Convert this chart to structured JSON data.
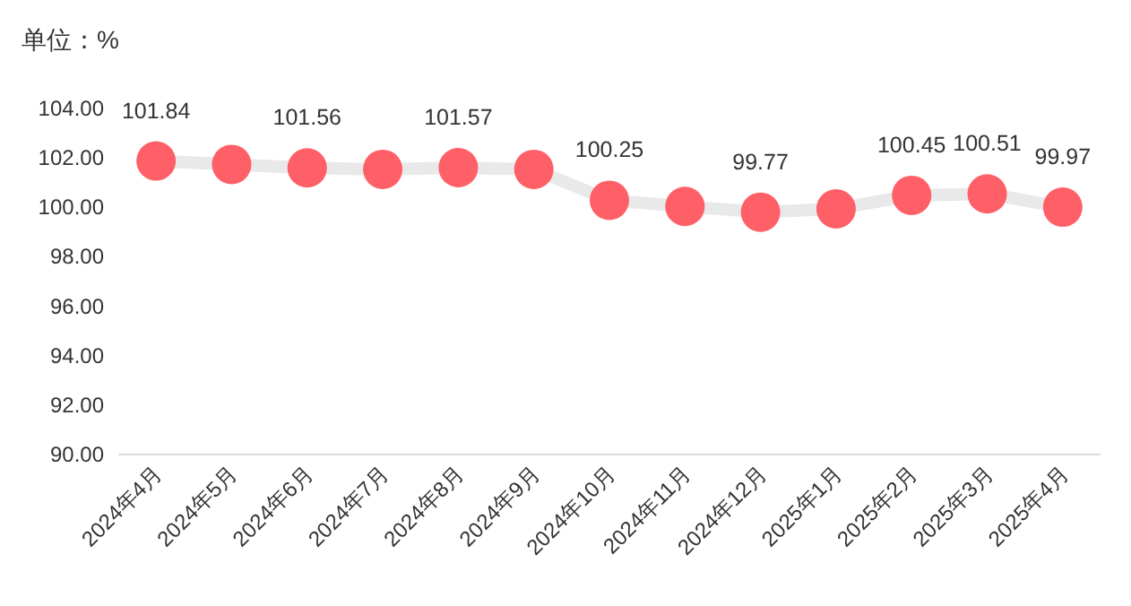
{
  "chart_data": {
    "type": "line",
    "ylabel": "单位：%",
    "categories": [
      "2024年4月",
      "2024年5月",
      "2024年6月",
      "2024年7月",
      "2024年8月",
      "2024年9月",
      "2024年10月",
      "2024年11月",
      "2024年12月",
      "2025年1月",
      "2025年2月",
      "2025年3月",
      "2025年4月"
    ],
    "series": [
      {
        "color": "#ff5f66",
        "values": [
          101.84,
          101.7,
          101.56,
          101.5,
          101.57,
          101.5,
          100.25,
          100.0,
          99.77,
          99.9,
          100.45,
          100.51,
          99.97
        ],
        "value_labels": [
          "101.84",
          null,
          "101.56",
          null,
          "101.57",
          null,
          "100.25",
          null,
          "99.77",
          null,
          "100.45",
          "100.51",
          "99.97"
        ]
      }
    ],
    "marker": "circle",
    "ylim": [
      90,
      104
    ],
    "yticks": [
      {
        "value": 90,
        "label": "90.00"
      },
      {
        "value": 92,
        "label": "92.00"
      },
      {
        "value": 94,
        "label": "94.00"
      },
      {
        "value": 96,
        "label": "96.00"
      },
      {
        "value": 98,
        "label": "98.00"
      },
      {
        "value": 100,
        "label": "100.00"
      },
      {
        "value": 102,
        "label": "102.00"
      },
      {
        "value": 104,
        "label": "104.00"
      }
    ]
  }
}
